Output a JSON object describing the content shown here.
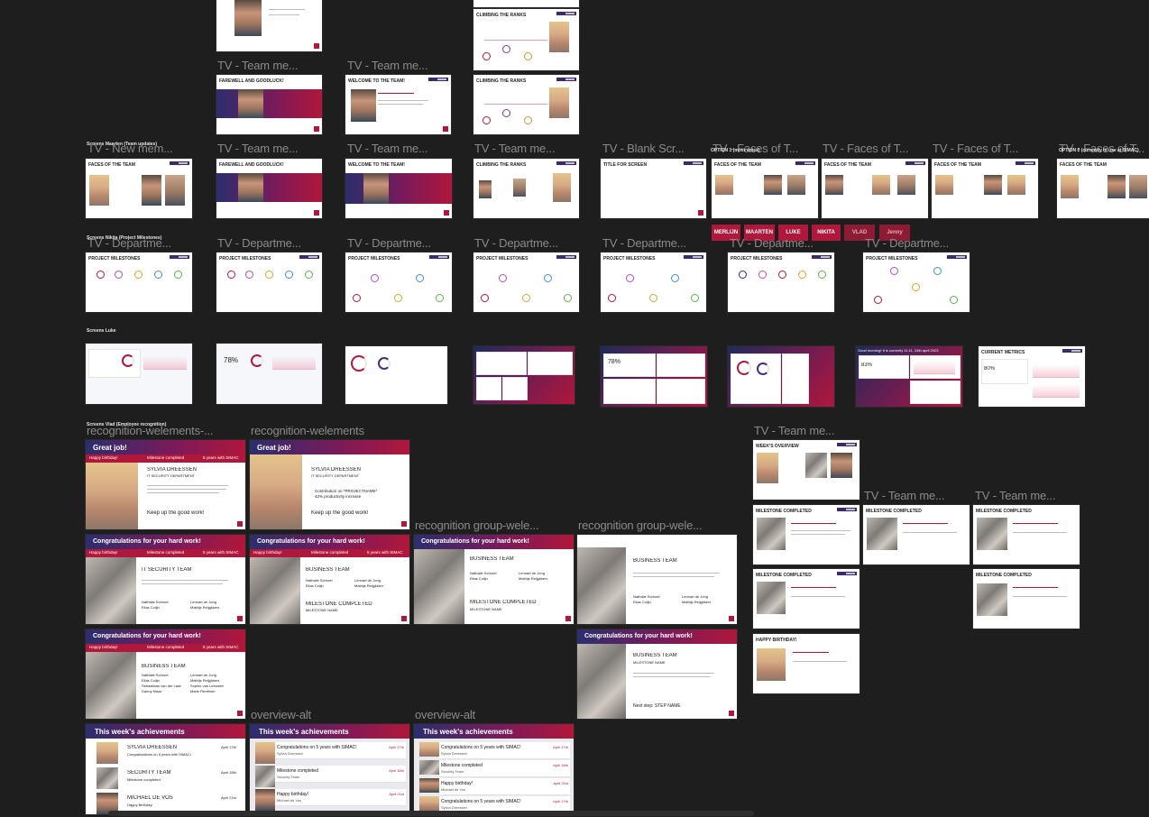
{
  "sections": {
    "maarten": "Screens Maarten (Team updates)",
    "nikita": "Screens Nikita (Project Milestones)",
    "luke": "Screens Luke",
    "vlad": "Screens Vlad (Employee recognition)",
    "option1": "OPTION 1 (most votes)",
    "option2": "OPTION 2 (currently in use at SIMAC)"
  },
  "frame_labels": {
    "tv_team_me": "TV - Team me...",
    "tv_new_mem": "TV - New mem...",
    "tv_blank": "TV - Blank Scr...",
    "tv_faces": "TV - Faces of T...",
    "tv_depart": "TV - Departme...",
    "recog_we_dots": "recognition-welements-...",
    "recog_we": "recognition-welements",
    "recog_g": "recognition group-wele...",
    "overview_alt": "overview-alt"
  },
  "slide_titles": {
    "farewell": "FAREWELL AND GOODLUCK!",
    "welcome": "WELCOME TO THE TEAM!",
    "climbing": "CLIMBING THE RANKS",
    "faces": "FACES OF THE TEAM",
    "title_for_screen": "TITLE FOR SCREEN",
    "milestones": "PROJECT MILESTONES",
    "current_metrics": "CURRENT METRICS",
    "weeks_overview": "WEEK'S OVERVIEW",
    "milestone_completed": "MILESTONE COMPLETED",
    "happy_birthday": "HAPPY BIRTHDAY!",
    "great_job": "Great job!",
    "congrats": "Congratulations for your hard work!",
    "this_weeks": "This week's achievements"
  },
  "people_tabs": [
    "MERLIJN",
    "MAARTEN",
    "LUKE",
    "NIKITA",
    "VLAD",
    "Jenny"
  ],
  "recognition": {
    "happy_birthday": "Happy birthday!",
    "milestone_completed": "Milestone completed",
    "years": "5 years with SIMAC",
    "name": "SYLVIA DREESSEN",
    "dept": "IT SECURITY DEPARTMENT",
    "keep_up": "Keep up the good work!",
    "contribution": "Contribution on *PROJECTNAME*",
    "productivity": "42% productivity increase",
    "it_security_team": "IT SECURITY TEAM",
    "business_team": "BUSINESS TEAM",
    "milestone_upper": "MILESTONE COMPLETED",
    "milestone_name": "MILESTONE NAME",
    "next_step": "Next step: STEP NAME",
    "members_a": [
      "Nathalie Schroet",
      "Elias Colijn",
      "Sebastiaan van der Laan",
      "Danny Maas"
    ],
    "members_b": [
      "Lennart de Jong",
      "Mathijs Reijgkkers",
      "Sophie van Leeuwen",
      "Marie Renffrum"
    ]
  },
  "achievements": {
    "a1_title": "SYLVIA DREESSEN",
    "a1_sub": "Congratulations on 5 years with SIMAC!",
    "a1_date": "April 17th",
    "a2_title": "SECURITY TEAM",
    "a2_sub": "Milestone completed",
    "a2_date": "April 18th",
    "a3_title": "MICHAEL DE VOS",
    "a3_sub": "Happy Birthday!",
    "a3_date": "April 21st",
    "b1": "Congratulations on 5 years with SIMAC!",
    "b1_sub": "Sylvia Dreessen",
    "b2": "Milestone completed",
    "b2_sub": "Security Team",
    "b3": "Happy birthday!",
    "b3_sub": "Michael de Vos"
  },
  "luke": {
    "metric_78": "78%",
    "metric_83": "83%",
    "metric_80": "80%",
    "good_morning": "Good morning! It is currently 11:11, 24th april 2023"
  }
}
